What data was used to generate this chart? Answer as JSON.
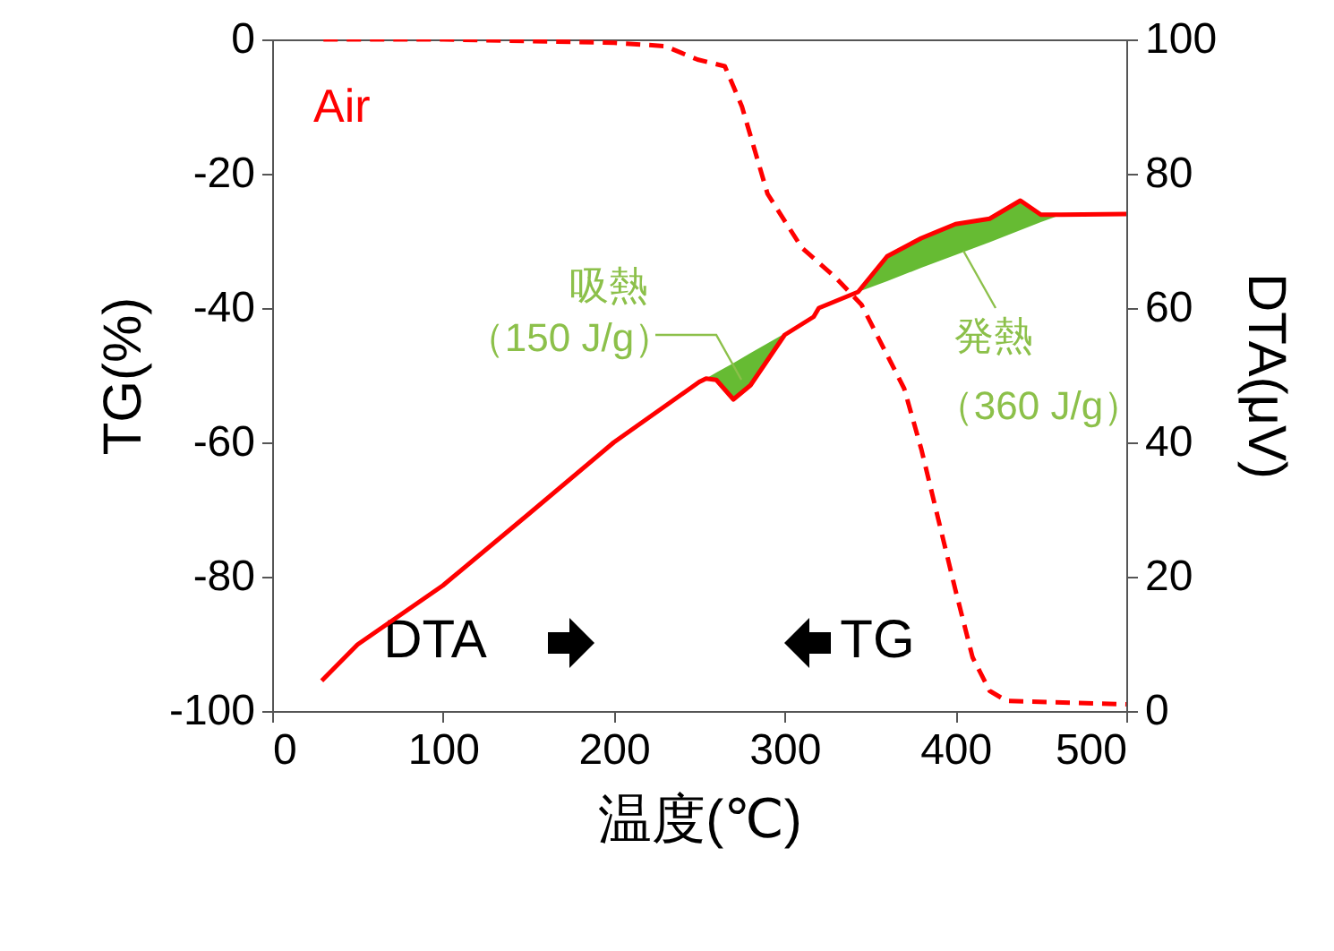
{
  "chart_data": {
    "type": "line",
    "xlabel": "温度(℃)",
    "ylabel": "TG(%)",
    "y2label": "DTA(μV)",
    "xlim": [
      0,
      500
    ],
    "xticks": [
      0,
      100,
      200,
      300,
      400,
      500
    ],
    "ylim": [
      -100,
      0
    ],
    "yticks": [
      -100,
      -80,
      -60,
      -40,
      -20,
      0
    ],
    "y2lim": [
      0,
      100
    ],
    "y2ticks": [
      0,
      20,
      40,
      60,
      80,
      100
    ],
    "series": [
      {
        "name": "TG",
        "color": "#ff0000",
        "line_style": "dashed",
        "x": [
          30,
          100,
          200,
          230,
          249,
          265,
          275,
          290,
          310,
          330,
          345,
          360,
          370,
          380,
          390,
          400,
          410,
          420,
          430,
          500
        ],
        "values": [
          0,
          0,
          -0.5,
          -1,
          -3,
          -4,
          -10,
          -23,
          -31,
          -35.5,
          -39.5,
          -47,
          -52,
          -61,
          -71.5,
          -82,
          -92,
          -97,
          -98.5,
          -99
        ]
      },
      {
        "name": "DTA",
        "color": "#ff0000",
        "line_style": "solid",
        "axis": "y2",
        "x": [
          29,
          50,
          100,
          150,
          200,
          250,
          254,
          260,
          270,
          280,
          300,
          317,
          320,
          343,
          360,
          380,
          400,
          420,
          438,
          450,
          462,
          500
        ],
        "values": [
          4.5,
          9.9,
          18.7,
          29.3,
          40,
          49,
          49.5,
          49.3,
          46.4,
          48.5,
          56,
          58.7,
          60,
          62.4,
          67.7,
          70.4,
          72.5,
          73.3,
          76,
          73.9,
          73.9,
          74
        ],
        "lower": [
          null,
          null,
          null,
          null,
          null,
          null,
          49.5,
          49.3,
          46.4,
          48.5,
          56,
          58.7,
          null,
          62.4,
          64,
          66,
          67.9,
          69.8,
          71.6,
          72.8,
          73.9,
          null
        ],
        "upper": [
          null,
          null,
          null,
          null,
          null,
          null,
          49.5,
          50.4,
          51.8,
          53.3,
          56.2,
          58.7,
          null,
          62.4,
          67.7,
          70.4,
          72.5,
          73.3,
          76,
          73.9,
          73.9,
          null
        ]
      }
    ],
    "annotations": [
      "Air",
      "吸熱",
      "（150 J/g）",
      "発熱",
      "（360 J/g）"
    ]
  }
}
